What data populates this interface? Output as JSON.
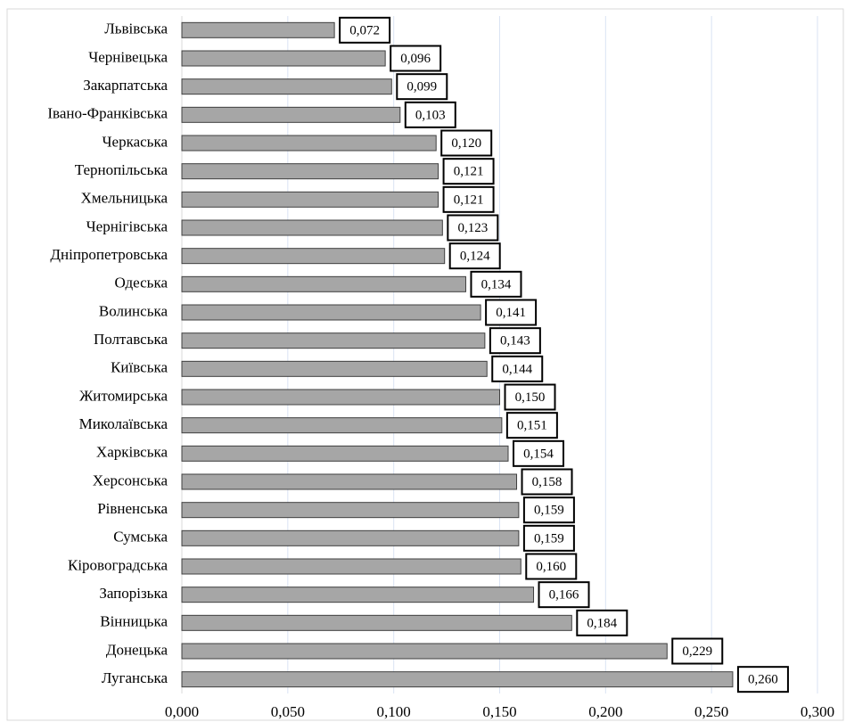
{
  "chart_data": {
    "type": "bar",
    "orientation": "horizontal",
    "categories": [
      "Львівська",
      "Чернівецька",
      "Закарпатська",
      "Івано-Франківська",
      "Черкаська",
      "Тернопільська",
      "Хмельницька",
      "Чернігівська",
      "Дніпропетровська",
      "Одеська",
      "Волинська",
      "Полтавська",
      "Київська",
      "Житомирська",
      "Миколаївська",
      "Харківська",
      "Херсонська",
      "Рівненська",
      "Сумська",
      "Кіровоградська",
      "Запорізька",
      "Вінницька",
      "Донецька",
      "Луганська"
    ],
    "values": [
      0.072,
      0.096,
      0.099,
      0.103,
      0.12,
      0.121,
      0.121,
      0.123,
      0.124,
      0.134,
      0.141,
      0.143,
      0.144,
      0.15,
      0.151,
      0.154,
      0.158,
      0.159,
      0.159,
      0.16,
      0.166,
      0.184,
      0.229,
      0.26
    ],
    "value_labels": [
      "0,072",
      "0,096",
      "0,099",
      "0,103",
      "0,120",
      "0,121",
      "0,121",
      "0,123",
      "0,124",
      "0,134",
      "0,141",
      "0,143",
      "0,144",
      "0,150",
      "0,151",
      "0,154",
      "0,158",
      "0,159",
      "0,159",
      "0,160",
      "0,166",
      "0,184",
      "0,229",
      "0,260"
    ],
    "color": "#a6a6a6",
    "xlim": [
      0,
      0.3
    ],
    "xticks": [
      {
        "value": 0,
        "label": "0,000"
      },
      {
        "value": 0.05,
        "label": "0,050"
      },
      {
        "value": 0.1,
        "label": "0,100"
      },
      {
        "value": 0.15,
        "label": "0,150"
      },
      {
        "value": 0.2,
        "label": "0,200"
      },
      {
        "value": 0.25,
        "label": "0,250"
      },
      {
        "value": 0.3,
        "label": "0,300"
      }
    ],
    "grid": true
  }
}
